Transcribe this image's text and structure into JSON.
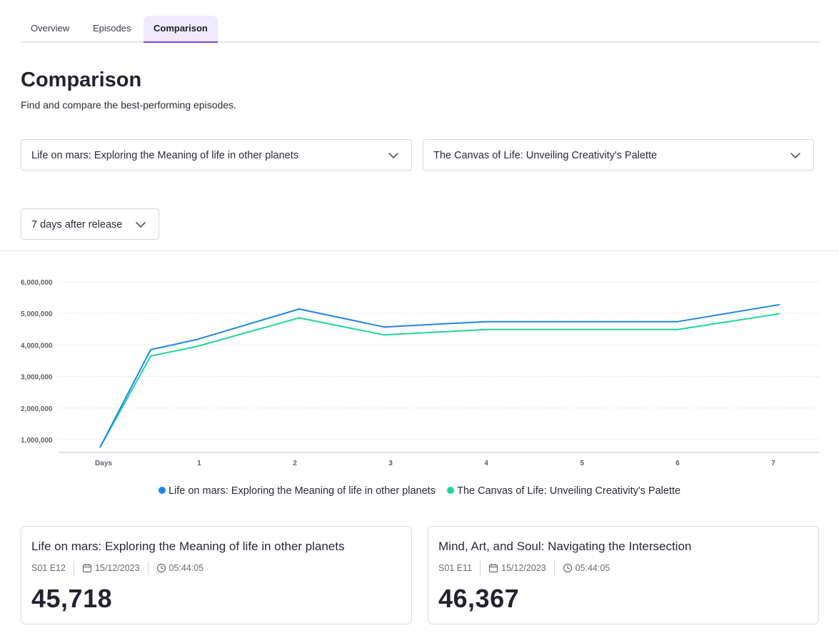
{
  "tabs": [
    {
      "label": "Overview"
    },
    {
      "label": "Episodes"
    },
    {
      "label": "Comparison"
    }
  ],
  "page": {
    "title": "Comparison",
    "subtitle": "Find and compare the best-performing episodes."
  },
  "selectors": {
    "episode_a": "Life on mars: Exploring the Meaning of life in other planets",
    "episode_b": "The Canvas of Life: Unveiling Creativity's Palette",
    "period": "7 days after release"
  },
  "colors": {
    "series_a": "#1e88e5",
    "series_b": "#1ed69b",
    "accent": "#7b3fe4"
  },
  "chart_data": {
    "type": "line",
    "categories": [
      "Days",
      "1",
      "2",
      "3",
      "4",
      "5",
      "6",
      "7"
    ],
    "x": [
      0,
      0.5,
      1,
      2,
      3,
      4,
      5,
      6,
      7
    ],
    "series": [
      {
        "name": "Life on mars: Exploring the Meaning of life in other planets",
        "values": [
          750000,
          3850000,
          4170000,
          5140000,
          4570000,
          4740000,
          4740000,
          4740000,
          5280000
        ]
      },
      {
        "name": "The Canvas of Life: Unveiling Creativity's Palette",
        "values": [
          750000,
          3650000,
          3950000,
          4860000,
          4320000,
          4490000,
          4490000,
          4490000,
          4990000
        ]
      }
    ],
    "y_ticks": [
      "6,000,000",
      "5,000,000",
      "4,000,000",
      "3,000,000",
      "2,000,000",
      "1,000,000"
    ],
    "ylim": [
      600000,
      6000000
    ],
    "grid": true,
    "legend": "bottom-center"
  },
  "cards": [
    {
      "title": "Life on mars: Exploring the Meaning of life in other planets",
      "episode": "S01 E12",
      "date": "15/12/2023",
      "duration": "05:44:05",
      "value": "45,718"
    },
    {
      "title": "Mind, Art, and Soul: Navigating the Intersection",
      "episode": "S01 E11",
      "date": "15/12/2023",
      "duration": "05:44:05",
      "value": "46,367"
    }
  ],
  "icons": {
    "chevron": "chevron-down-icon",
    "calendar": "calendar-icon",
    "clock": "clock-icon"
  }
}
